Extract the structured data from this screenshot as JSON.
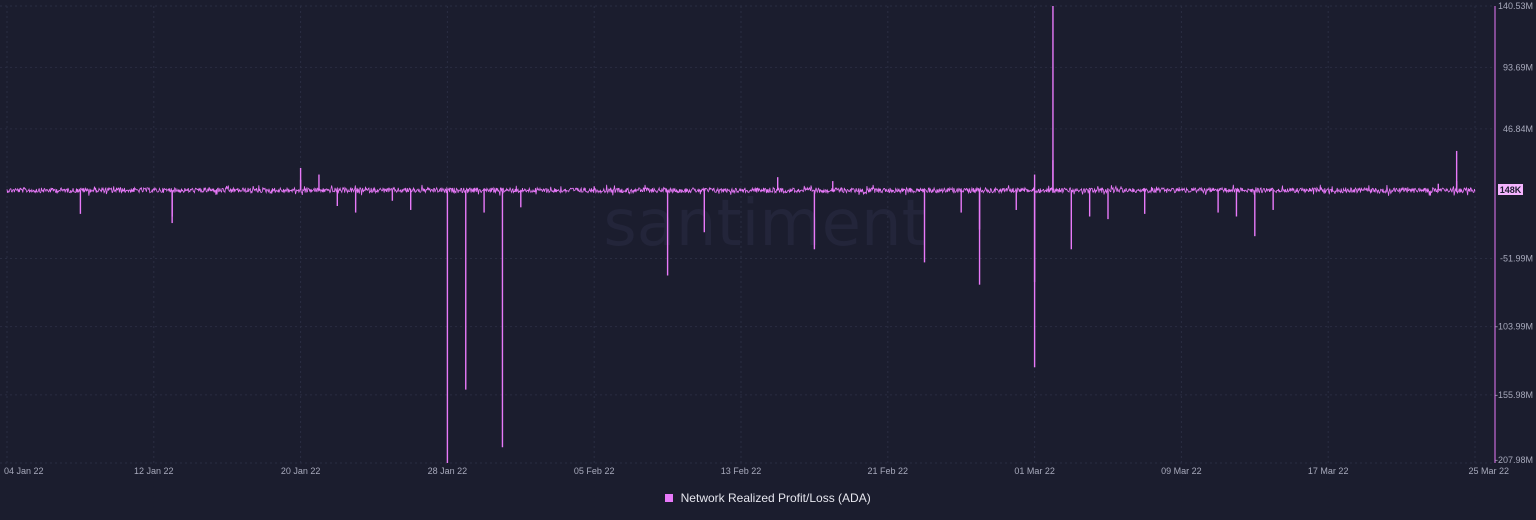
{
  "chart_data": {
    "type": "bar",
    "title": "",
    "watermark": "santiment",
    "series": [
      {
        "name": "Network Realized Profit/Loss (ADA)",
        "color": "#e879f9",
        "last_value_label": "148K",
        "spikes": [
          {
            "x": "2022-01-08",
            "y": -18
          },
          {
            "x": "2022-01-13",
            "y": -25
          },
          {
            "x": "2022-01-13",
            "y": -20
          },
          {
            "x": "2022-01-20",
            "y": 17
          },
          {
            "x": "2022-01-20",
            "y": 8
          },
          {
            "x": "2022-01-21",
            "y": 12
          },
          {
            "x": "2022-01-22",
            "y": -12
          },
          {
            "x": "2022-01-23",
            "y": -17
          },
          {
            "x": "2022-01-25",
            "y": -8
          },
          {
            "x": "2022-01-26",
            "y": -15
          },
          {
            "x": "2022-01-28",
            "y": -208
          },
          {
            "x": "2022-01-29",
            "y": -152
          },
          {
            "x": "2022-01-30",
            "y": -17
          },
          {
            "x": "2022-01-31",
            "y": -196
          },
          {
            "x": "2022-02-01",
            "y": -13
          },
          {
            "x": "2022-02-05",
            "y": 3
          },
          {
            "x": "2022-02-09",
            "y": -65
          },
          {
            "x": "2022-02-11",
            "y": -32
          },
          {
            "x": "2022-02-15",
            "y": 10
          },
          {
            "x": "2022-02-17",
            "y": -45
          },
          {
            "x": "2022-02-18",
            "y": 7
          },
          {
            "x": "2022-02-23",
            "y": -55
          },
          {
            "x": "2022-02-25",
            "y": -17
          },
          {
            "x": "2022-02-26",
            "y": -72
          },
          {
            "x": "2022-02-26",
            "y": -30
          },
          {
            "x": "2022-02-28",
            "y": -15
          },
          {
            "x": "2022-03-01",
            "y": -70
          },
          {
            "x": "2022-03-01",
            "y": -135
          },
          {
            "x": "2022-03-01",
            "y": 12
          },
          {
            "x": "2022-03-02",
            "y": 140.53
          },
          {
            "x": "2022-03-02",
            "y": 23
          },
          {
            "x": "2022-03-03",
            "y": -45
          },
          {
            "x": "2022-03-04",
            "y": -20
          },
          {
            "x": "2022-03-05",
            "y": -22
          },
          {
            "x": "2022-03-07",
            "y": -18
          },
          {
            "x": "2022-03-11",
            "y": -17
          },
          {
            "x": "2022-03-12",
            "y": -20
          },
          {
            "x": "2022-03-13",
            "y": -35
          },
          {
            "x": "2022-03-14",
            "y": -15
          },
          {
            "x": "2022-03-23",
            "y": 5
          },
          {
            "x": "2022-03-24",
            "y": 30
          },
          {
            "x": "2022-03-24",
            "y": 7
          }
        ]
      }
    ],
    "x_ticks": [
      "04 Jan 22",
      "12 Jan 22",
      "20 Jan 22",
      "28 Jan 22",
      "05 Feb 22",
      "13 Feb 22",
      "21 Feb 22",
      "01 Mar 22",
      "09 Mar 22",
      "17 Mar 22",
      "25 Mar 22"
    ],
    "x_tick_dates": [
      "2022-01-04",
      "2022-01-12",
      "2022-01-20",
      "2022-01-28",
      "2022-02-05",
      "2022-02-13",
      "2022-02-21",
      "2022-03-01",
      "2022-03-09",
      "2022-03-17",
      "2022-03-25"
    ],
    "y_ticks": [
      "140.53M",
      "93.69M",
      "46.84M",
      "-51.99M",
      "-103.99M",
      "-155.98M",
      "-207.98M"
    ],
    "y_tick_values": [
      140.53,
      93.69,
      46.84,
      -51.99,
      -103.99,
      -155.98,
      -207.98
    ],
    "ylim": [
      -207.98,
      140.53
    ],
    "y_unit": "M",
    "grid": true,
    "legend_position": "bottom-center"
  }
}
